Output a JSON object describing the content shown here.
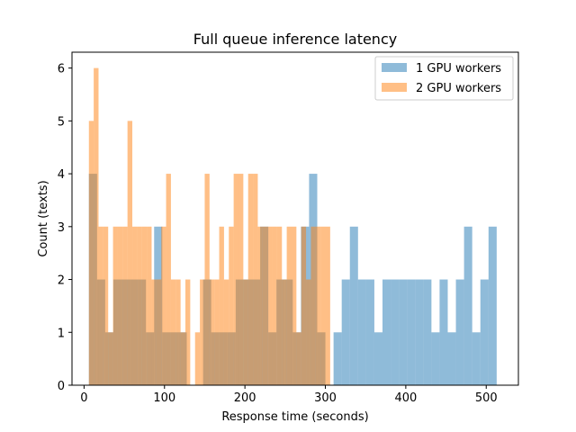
{
  "chart_data": {
    "type": "histogram",
    "title": "Full queue inference latency",
    "xlabel": "Response time (seconds)",
    "ylabel": "Count (texts)",
    "xlim": [
      -15,
      540
    ],
    "ylim": [
      0,
      6.3
    ],
    "xticks": [
      0,
      100,
      200,
      300,
      400,
      500
    ],
    "yticks": [
      0,
      1,
      2,
      3,
      4,
      5,
      6
    ],
    "legend_position": "top-right",
    "grid": false,
    "series": [
      {
        "name": "1 GPU workers",
        "color": "#1f77b4",
        "alpha": 0.5,
        "bin_start": 6,
        "bin_width": 10.14,
        "counts": [
          4,
          2,
          1,
          2,
          2,
          2,
          2,
          1,
          3,
          1,
          1,
          1,
          0,
          0,
          2,
          1,
          1,
          1,
          2,
          2,
          2,
          3,
          1,
          2,
          2,
          1,
          3,
          4,
          1,
          0,
          1,
          2,
          3,
          2,
          2,
          1,
          2,
          2,
          2,
          2,
          2,
          2,
          1,
          2,
          1,
          2,
          3,
          1,
          2,
          3
        ]
      },
      {
        "name": "2 GPU workers",
        "color": "#ff7f0e",
        "alpha": 0.5,
        "bin_start": 6,
        "bin_width": 6.0,
        "counts": [
          5,
          6,
          3,
          3,
          1,
          3,
          3,
          3,
          5,
          3,
          3,
          3,
          3,
          2,
          2,
          3,
          4,
          2,
          2,
          1,
          2,
          0,
          1,
          2,
          4,
          2,
          2,
          3,
          2,
          3,
          4,
          4,
          2,
          4,
          4,
          3,
          3,
          3,
          3,
          3,
          2,
          3,
          3,
          1,
          3,
          2,
          3,
          3,
          3,
          3
        ]
      }
    ]
  }
}
